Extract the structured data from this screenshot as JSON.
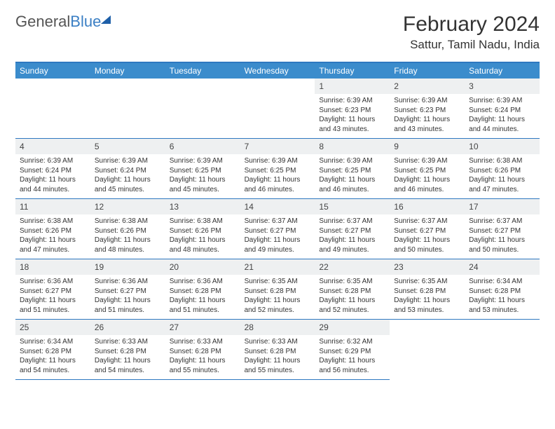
{
  "brand": {
    "part1": "General",
    "part2": "Blue"
  },
  "title": "February 2024",
  "location": "Sattur, Tamil Nadu, India",
  "header_bg": "#3b8ccc",
  "border_color": "#2e78c0",
  "daynum_bg": "#eef0f1",
  "dow": [
    "Sunday",
    "Monday",
    "Tuesday",
    "Wednesday",
    "Thursday",
    "Friday",
    "Saturday"
  ],
  "weeks": [
    [
      null,
      null,
      null,
      null,
      {
        "d": "1",
        "sr": "6:39 AM",
        "ss": "6:23 PM",
        "dl": "11 hours and 43 minutes."
      },
      {
        "d": "2",
        "sr": "6:39 AM",
        "ss": "6:23 PM",
        "dl": "11 hours and 43 minutes."
      },
      {
        "d": "3",
        "sr": "6:39 AM",
        "ss": "6:24 PM",
        "dl": "11 hours and 44 minutes."
      }
    ],
    [
      {
        "d": "4",
        "sr": "6:39 AM",
        "ss": "6:24 PM",
        "dl": "11 hours and 44 minutes."
      },
      {
        "d": "5",
        "sr": "6:39 AM",
        "ss": "6:24 PM",
        "dl": "11 hours and 45 minutes."
      },
      {
        "d": "6",
        "sr": "6:39 AM",
        "ss": "6:25 PM",
        "dl": "11 hours and 45 minutes."
      },
      {
        "d": "7",
        "sr": "6:39 AM",
        "ss": "6:25 PM",
        "dl": "11 hours and 46 minutes."
      },
      {
        "d": "8",
        "sr": "6:39 AM",
        "ss": "6:25 PM",
        "dl": "11 hours and 46 minutes."
      },
      {
        "d": "9",
        "sr": "6:39 AM",
        "ss": "6:25 PM",
        "dl": "11 hours and 46 minutes."
      },
      {
        "d": "10",
        "sr": "6:38 AM",
        "ss": "6:26 PM",
        "dl": "11 hours and 47 minutes."
      }
    ],
    [
      {
        "d": "11",
        "sr": "6:38 AM",
        "ss": "6:26 PM",
        "dl": "11 hours and 47 minutes."
      },
      {
        "d": "12",
        "sr": "6:38 AM",
        "ss": "6:26 PM",
        "dl": "11 hours and 48 minutes."
      },
      {
        "d": "13",
        "sr": "6:38 AM",
        "ss": "6:26 PM",
        "dl": "11 hours and 48 minutes."
      },
      {
        "d": "14",
        "sr": "6:37 AM",
        "ss": "6:27 PM",
        "dl": "11 hours and 49 minutes."
      },
      {
        "d": "15",
        "sr": "6:37 AM",
        "ss": "6:27 PM",
        "dl": "11 hours and 49 minutes."
      },
      {
        "d": "16",
        "sr": "6:37 AM",
        "ss": "6:27 PM",
        "dl": "11 hours and 50 minutes."
      },
      {
        "d": "17",
        "sr": "6:37 AM",
        "ss": "6:27 PM",
        "dl": "11 hours and 50 minutes."
      }
    ],
    [
      {
        "d": "18",
        "sr": "6:36 AM",
        "ss": "6:27 PM",
        "dl": "11 hours and 51 minutes."
      },
      {
        "d": "19",
        "sr": "6:36 AM",
        "ss": "6:27 PM",
        "dl": "11 hours and 51 minutes."
      },
      {
        "d": "20",
        "sr": "6:36 AM",
        "ss": "6:28 PM",
        "dl": "11 hours and 51 minutes."
      },
      {
        "d": "21",
        "sr": "6:35 AM",
        "ss": "6:28 PM",
        "dl": "11 hours and 52 minutes."
      },
      {
        "d": "22",
        "sr": "6:35 AM",
        "ss": "6:28 PM",
        "dl": "11 hours and 52 minutes."
      },
      {
        "d": "23",
        "sr": "6:35 AM",
        "ss": "6:28 PM",
        "dl": "11 hours and 53 minutes."
      },
      {
        "d": "24",
        "sr": "6:34 AM",
        "ss": "6:28 PM",
        "dl": "11 hours and 53 minutes."
      }
    ],
    [
      {
        "d": "25",
        "sr": "6:34 AM",
        "ss": "6:28 PM",
        "dl": "11 hours and 54 minutes."
      },
      {
        "d": "26",
        "sr": "6:33 AM",
        "ss": "6:28 PM",
        "dl": "11 hours and 54 minutes."
      },
      {
        "d": "27",
        "sr": "6:33 AM",
        "ss": "6:28 PM",
        "dl": "11 hours and 55 minutes."
      },
      {
        "d": "28",
        "sr": "6:33 AM",
        "ss": "6:28 PM",
        "dl": "11 hours and 55 minutes."
      },
      {
        "d": "29",
        "sr": "6:32 AM",
        "ss": "6:29 PM",
        "dl": "11 hours and 56 minutes."
      },
      null,
      null
    ]
  ],
  "labels": {
    "sunrise": "Sunrise:",
    "sunset": "Sunset:",
    "daylight": "Daylight:"
  }
}
